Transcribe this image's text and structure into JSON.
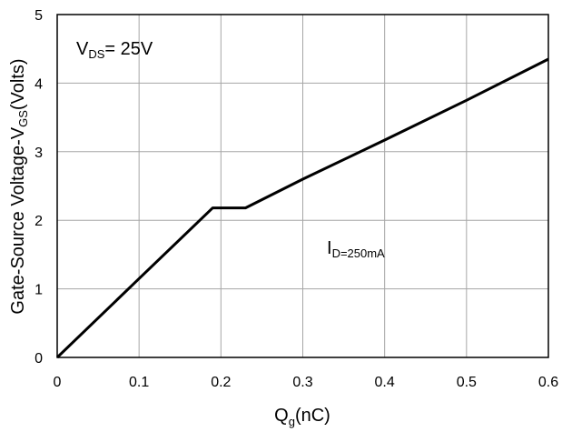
{
  "chart_data": {
    "type": "line",
    "x": [
      0,
      0.1,
      0.19,
      0.23,
      0.3,
      0.4,
      0.5,
      0.6
    ],
    "y": [
      0,
      1.15,
      2.18,
      2.18,
      2.6,
      3.17,
      3.75,
      4.35
    ],
    "xlim": [
      0,
      0.6
    ],
    "ylim": [
      0,
      5
    ],
    "xticks": [
      "0",
      "0.1",
      "0.2",
      "0.3",
      "0.4",
      "0.5",
      "0.6"
    ],
    "yticks": [
      "0",
      "1",
      "2",
      "3",
      "4",
      "5"
    ],
    "grid": true,
    "xlabel": {
      "main": "Q",
      "sub": "g",
      "tail": "(nC)"
    },
    "ylabel": {
      "main": "Gate-Source Voltage-V",
      "sub": "GS",
      "tail": "(Volts)"
    },
    "annotations": {
      "vds": {
        "main": "V",
        "sub": "DS",
        "tail": "= 25V"
      },
      "id": {
        "main": "I",
        "sub": "D=250mA"
      }
    },
    "line_color": "#000000",
    "grid_color": "#a6a6a6"
  }
}
